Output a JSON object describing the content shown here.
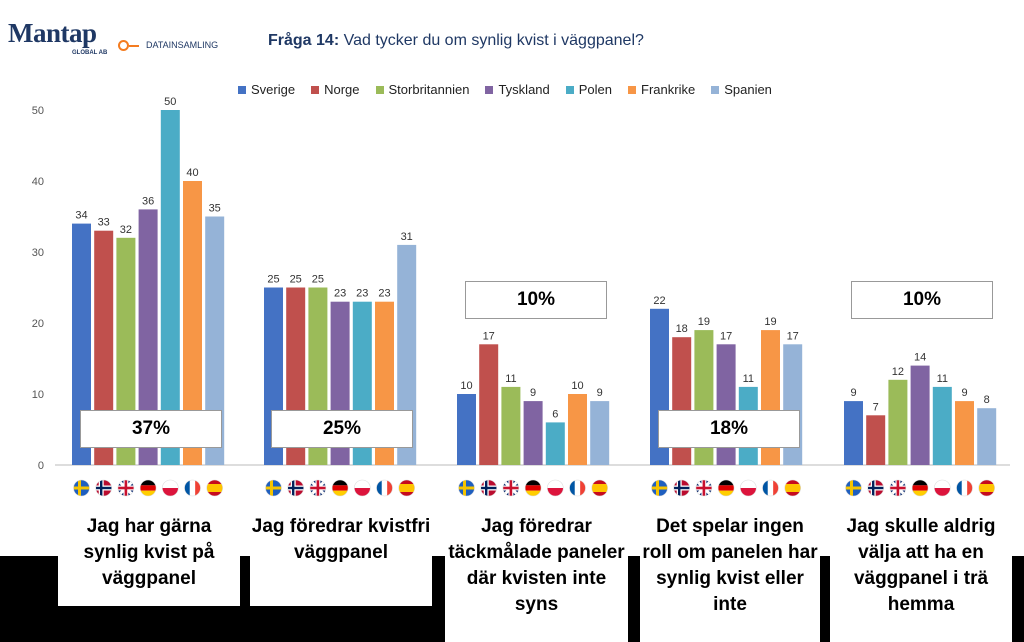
{
  "header": {
    "logo": "Mantap",
    "logo_sub": "GLOBAL AB",
    "logo_tag": "DATAINSAMLING",
    "title_bold": "Fråga 14:",
    "title_rest": "Vad tycker du om synlig kvist i väggpanel?"
  },
  "colors": {
    "Sverige": "#4472c4",
    "Norge": "#c0504d",
    "Storbritannien": "#9bbb59",
    "Tyskland": "#8064a2",
    "Polen": "#4bacc6",
    "Frankrike": "#f79646",
    "Spanien": "#95b3d7"
  },
  "chart_data": {
    "type": "bar",
    "title": "Fråga 14: Vad tycker du om synlig kvist i väggpanel?",
    "categories": [
      "Jag har gärna synlig kvist på väggpanel",
      "Jag föredrar kvistfri väggpanel",
      "Jag föredrar täckmålade paneler där kvisten inte syns",
      "Det spelar ingen roll om panelen har synlig kvist eller inte",
      "Jag skulle aldrig välja att ha en väggpanel i trä hemma"
    ],
    "series": [
      {
        "name": "Sverige",
        "values": [
          34,
          25,
          10,
          22,
          9
        ]
      },
      {
        "name": "Norge",
        "values": [
          33,
          25,
          17,
          18,
          7
        ]
      },
      {
        "name": "Storbritannien",
        "values": [
          32,
          25,
          11,
          19,
          12
        ]
      },
      {
        "name": "Tyskland",
        "values": [
          36,
          23,
          9,
          17,
          14
        ]
      },
      {
        "name": "Polen",
        "values": [
          50,
          23,
          6,
          11,
          11
        ]
      },
      {
        "name": "Frankrike",
        "values": [
          40,
          23,
          10,
          19,
          9
        ]
      },
      {
        "name": "Spanien",
        "values": [
          35,
          31,
          9,
          17,
          8
        ]
      }
    ],
    "averages": [
      "37%",
      "25%",
      "10%",
      "18%",
      "10%"
    ],
    "yticks": [
      0,
      10,
      20,
      30,
      40,
      50
    ],
    "ylim": [
      0,
      52
    ],
    "legend": "top",
    "grid": false
  }
}
